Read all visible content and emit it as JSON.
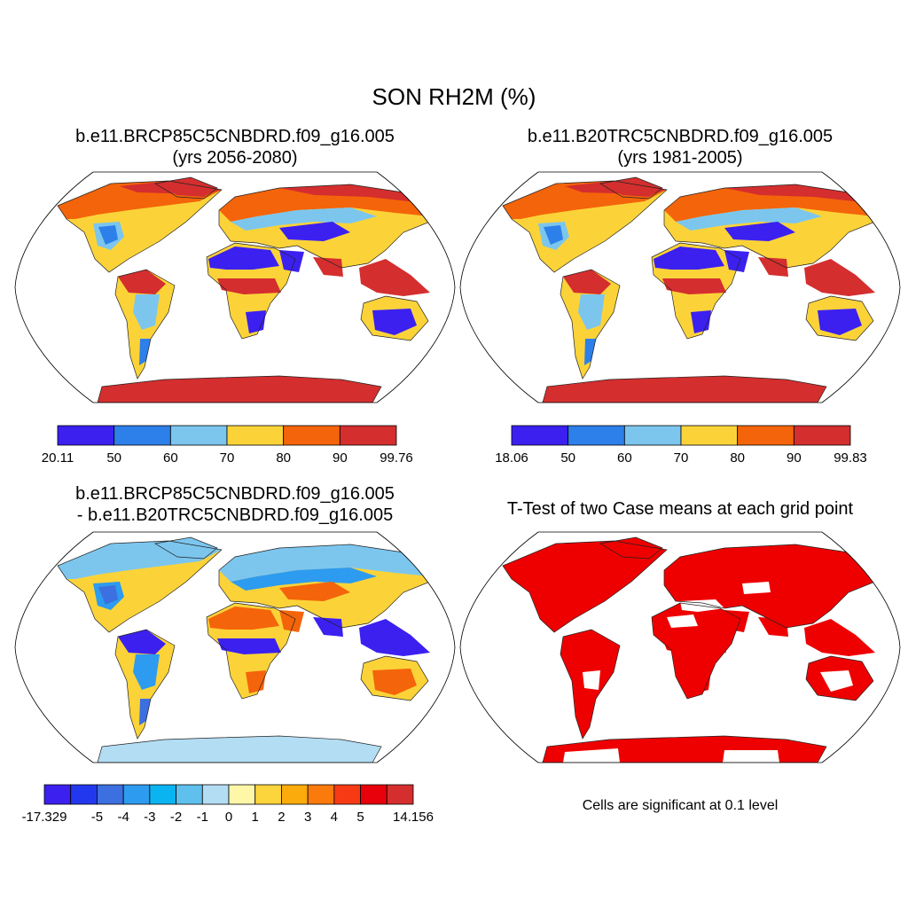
{
  "figure": {
    "title": "SON RH2M (%)"
  },
  "panels": [
    {
      "title_line1": "b.e11.BRCP85C5CNBDRD.f09_g16.005",
      "title_line2": "(yrs 2056-2080)",
      "colors": {
        "sahara": "#3b20f0",
        "arctic": "#d42e2e",
        "boreal": "#f4640a",
        "tropics": "#d42e2e",
        "antarctica": "#d42e2e",
        "mid": "#fbd339",
        "light": "#7cc6ee",
        "blue": "#2d7fe9"
      },
      "colorbar": {
        "labels": [
          "20.11",
          "50",
          "60",
          "70",
          "80",
          "90",
          "99.76"
        ],
        "colors": [
          "#3b20f0",
          "#2d7fe9",
          "#7cc6ee",
          "#fbd339",
          "#f4640a",
          "#d42e2e"
        ]
      }
    },
    {
      "title_line1": "b.e11.B20TRC5CNBDRD.f09_g16.005",
      "title_line2": "(yrs 1981-2005)",
      "colors": {
        "sahara": "#3b20f0",
        "arctic": "#d42e2e",
        "boreal": "#f4640a",
        "tropics": "#d42e2e",
        "antarctica": "#d42e2e",
        "mid": "#fbd339",
        "light": "#7cc6ee",
        "blue": "#2d7fe9"
      },
      "colorbar": {
        "labels": [
          "18.06",
          "50",
          "60",
          "70",
          "80",
          "90",
          "99.83"
        ],
        "colors": [
          "#3b20f0",
          "#2d7fe9",
          "#7cc6ee",
          "#fbd339",
          "#f4640a",
          "#d42e2e"
        ]
      }
    },
    {
      "title_line1": "b.e11.BRCP85C5CNBDRD.f09_g16.005",
      "title_line2": "- b.e11.B20TRC5CNBDRD.f09_g16.005",
      "colors": {
        "sahara": "#f4640a",
        "arctic": "#7cc6ee",
        "boreal": "#7cc6ee",
        "tropics": "#3b20f0",
        "antarctica": "#b3ddf3",
        "mid": "#fbd339",
        "light": "#2d9bef",
        "blue": "#3c6fe0"
      },
      "colorbar": {
        "labels": [
          "-17.329",
          "-5",
          "-4",
          "-3",
          "-2",
          "-1",
          "0",
          "1",
          "2",
          "3",
          "4",
          "5",
          "14.156"
        ],
        "colors": [
          "#3b20f0",
          "#2238ee",
          "#3c6fe0",
          "#2d9bef",
          "#0ab4f0",
          "#5fc0ee",
          "#b3ddf3",
          "#fff7a8",
          "#fcd43c",
          "#fcab0c",
          "#fb7a0c",
          "#f83a14",
          "#e8000a",
          "#d42e2e"
        ]
      }
    },
    {
      "title_line1": "T-Test of two Case means at each grid point",
      "title_line2": "",
      "colors": {
        "sahara": "#ee0000",
        "arctic": "#ee0000",
        "boreal": "#ee0000",
        "tropics": "#ee0000",
        "antarctica": "#ee0000",
        "mid": "#ee0000",
        "light": "#ee0000",
        "blue": "#ee0000"
      },
      "note": "Cells are significant at 0.1 level"
    }
  ]
}
